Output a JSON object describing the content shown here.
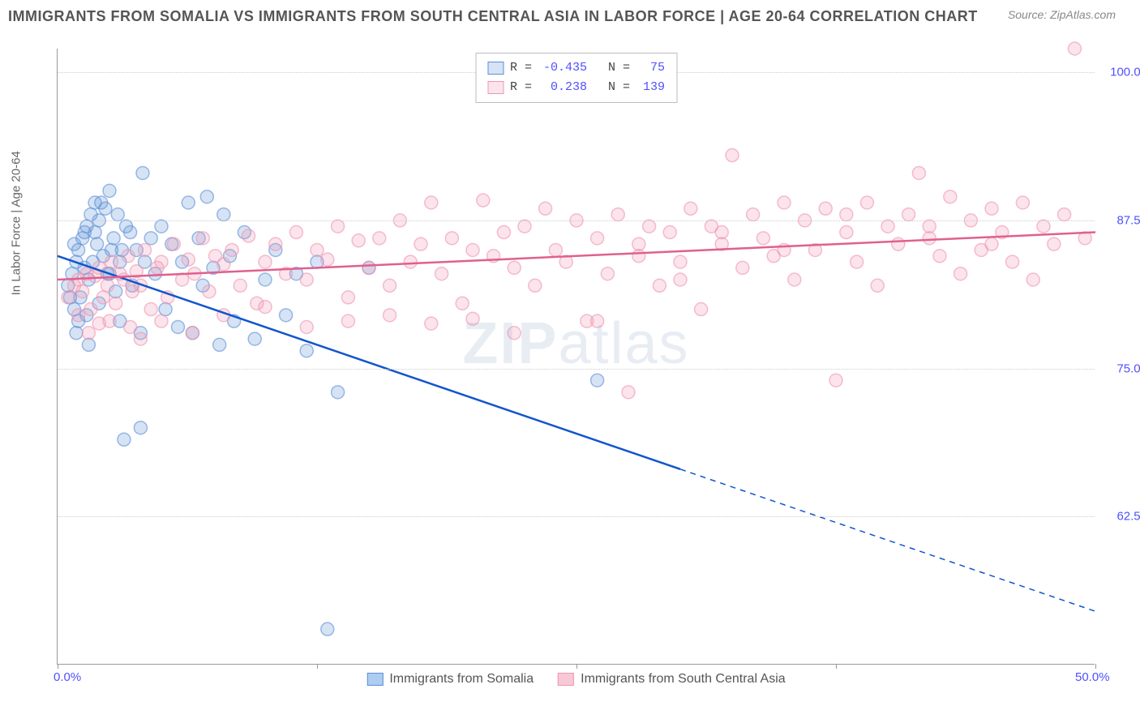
{
  "title": "IMMIGRANTS FROM SOMALIA VS IMMIGRANTS FROM SOUTH CENTRAL ASIA IN LABOR FORCE | AGE 20-64 CORRELATION CHART",
  "source": "Source: ZipAtlas.com",
  "ylabel": "In Labor Force | Age 20-64",
  "watermark_bold": "ZIP",
  "watermark_thin": "atlas",
  "chart": {
    "type": "scatter",
    "background_color": "#ffffff",
    "grid_color": "#cccccc",
    "axis_color": "#999999",
    "xlim": [
      0,
      50
    ],
    "ylim": [
      50,
      102
    ],
    "ytick_values": [
      62.5,
      75.0,
      87.5,
      100.0
    ],
    "ytick_labels": [
      "62.5%",
      "75.0%",
      "87.5%",
      "100.0%"
    ],
    "xtick_values": [
      0,
      12.5,
      25,
      37.5,
      50
    ],
    "xtick_labels": {
      "0": "0.0%",
      "50": "50.0%"
    },
    "marker_radius": 8,
    "marker_fill_opacity": 0.25,
    "marker_stroke_opacity": 0.6,
    "marker_stroke_width": 1.5,
    "line_width": 2.5
  },
  "series": [
    {
      "name": "Immigrants from Somalia",
      "color": "#5b8fd6",
      "line_color": "#1255cc",
      "R": "-0.435",
      "N": "75",
      "trend": {
        "x1": 0,
        "y1": 84.5,
        "x2": 30,
        "y2": 66.5,
        "x2_ext": 50,
        "y2_ext": 54.5
      },
      "points": [
        [
          0.5,
          82
        ],
        [
          0.7,
          83
        ],
        [
          0.8,
          80
        ],
        [
          0.9,
          84
        ],
        [
          1.0,
          85
        ],
        [
          1.1,
          81
        ],
        [
          1.2,
          86
        ],
        [
          1.3,
          83.5
        ],
        [
          1.4,
          87
        ],
        [
          1.5,
          82.5
        ],
        [
          1.6,
          88
        ],
        [
          1.7,
          84
        ],
        [
          1.8,
          86.5
        ],
        [
          1.9,
          85.5
        ],
        [
          2.0,
          87.5
        ],
        [
          2.1,
          89
        ],
        [
          2.2,
          84.5
        ],
        [
          2.3,
          88.5
        ],
        [
          2.4,
          83
        ],
        [
          2.5,
          90
        ],
        [
          2.6,
          85
        ],
        [
          2.7,
          86
        ],
        [
          2.8,
          81.5
        ],
        [
          2.9,
          88
        ],
        [
          3.0,
          84
        ],
        [
          3.2,
          69
        ],
        [
          3.3,
          87
        ],
        [
          3.5,
          86.5
        ],
        [
          3.6,
          82
        ],
        [
          3.8,
          85
        ],
        [
          4.0,
          78
        ],
        [
          4.1,
          91.5
        ],
        [
          4.2,
          84
        ],
        [
          4.5,
          86
        ],
        [
          4.7,
          83
        ],
        [
          5.0,
          87
        ],
        [
          5.2,
          80
        ],
        [
          5.5,
          85.5
        ],
        [
          5.8,
          78.5
        ],
        [
          6.0,
          84
        ],
        [
          6.3,
          89
        ],
        [
          6.5,
          78
        ],
        [
          6.8,
          86
        ],
        [
          7.0,
          82
        ],
        [
          7.2,
          89.5
        ],
        [
          7.5,
          83.5
        ],
        [
          7.8,
          77
        ],
        [
          8.0,
          88
        ],
        [
          8.3,
          84.5
        ],
        [
          8.5,
          79
        ],
        [
          9.0,
          86.5
        ],
        [
          9.5,
          77.5
        ],
        [
          10.0,
          82.5
        ],
        [
          10.5,
          85
        ],
        [
          11.0,
          79.5
        ],
        [
          11.5,
          83
        ],
        [
          12.0,
          76.5
        ],
        [
          12.5,
          84
        ],
        [
          13.0,
          53
        ],
        [
          15.0,
          83.5
        ],
        [
          1.0,
          79
        ],
        [
          1.5,
          77
        ],
        [
          2.0,
          80.5
        ],
        [
          0.8,
          85.5
        ],
        [
          1.3,
          86.5
        ],
        [
          3.0,
          79
        ],
        [
          4.0,
          70
        ],
        [
          1.8,
          89
        ],
        [
          2.5,
          83
        ],
        [
          3.1,
          85
        ],
        [
          0.6,
          81
        ],
        [
          0.9,
          78
        ],
        [
          1.4,
          79.5
        ],
        [
          26,
          74
        ],
        [
          13.5,
          73
        ]
      ]
    },
    {
      "name": "Immigrants from South Central Asia",
      "color": "#f095b0",
      "line_color": "#e06090",
      "R": "0.238",
      "N": "139",
      "trend": {
        "x1": 0,
        "y1": 82.5,
        "x2": 50,
        "y2": 86.5
      },
      "points": [
        [
          0.5,
          81
        ],
        [
          0.8,
          82
        ],
        [
          1.0,
          82.5
        ],
        [
          1.2,
          81.5
        ],
        [
          1.4,
          83
        ],
        [
          1.6,
          80
        ],
        [
          1.8,
          82.8
        ],
        [
          2.0,
          83.5
        ],
        [
          2.2,
          81
        ],
        [
          2.4,
          82
        ],
        [
          2.6,
          84
        ],
        [
          2.8,
          80.5
        ],
        [
          3.0,
          83
        ],
        [
          3.2,
          82.5
        ],
        [
          3.4,
          84.5
        ],
        [
          3.6,
          81.5
        ],
        [
          3.8,
          83.2
        ],
        [
          4.0,
          82
        ],
        [
          4.2,
          85
        ],
        [
          4.5,
          80
        ],
        [
          4.8,
          83.5
        ],
        [
          5.0,
          84
        ],
        [
          5.3,
          81
        ],
        [
          5.6,
          85.5
        ],
        [
          6.0,
          82.5
        ],
        [
          6.3,
          84.2
        ],
        [
          6.6,
          83
        ],
        [
          7.0,
          86
        ],
        [
          7.3,
          81.5
        ],
        [
          7.6,
          84.5
        ],
        [
          8.0,
          83.8
        ],
        [
          8.4,
          85
        ],
        [
          8.8,
          82
        ],
        [
          9.2,
          86.2
        ],
        [
          9.6,
          80.5
        ],
        [
          10.0,
          84
        ],
        [
          10.5,
          85.5
        ],
        [
          11.0,
          83
        ],
        [
          11.5,
          86.5
        ],
        [
          12.0,
          82.5
        ],
        [
          12.5,
          85
        ],
        [
          13.0,
          84.2
        ],
        [
          13.5,
          87
        ],
        [
          14.0,
          81
        ],
        [
          14.5,
          85.8
        ],
        [
          15.0,
          83.5
        ],
        [
          15.5,
          86
        ],
        [
          16.0,
          82
        ],
        [
          16.5,
          87.5
        ],
        [
          17.0,
          84
        ],
        [
          17.5,
          85.5
        ],
        [
          18.0,
          89
        ],
        [
          18.5,
          83
        ],
        [
          19.0,
          86
        ],
        [
          19.5,
          80.5
        ],
        [
          20.0,
          85
        ],
        [
          20.5,
          89.2
        ],
        [
          21.0,
          84.5
        ],
        [
          21.5,
          86.5
        ],
        [
          22.0,
          83.5
        ],
        [
          22.5,
          87
        ],
        [
          23.0,
          82
        ],
        [
          23.5,
          88.5
        ],
        [
          24.0,
          85
        ],
        [
          24.5,
          84
        ],
        [
          25.0,
          87.5
        ],
        [
          25.5,
          79
        ],
        [
          26.0,
          86
        ],
        [
          26.5,
          83
        ],
        [
          27.0,
          88
        ],
        [
          27.5,
          73
        ],
        [
          28.0,
          85.5
        ],
        [
          28.5,
          87
        ],
        [
          29.0,
          82
        ],
        [
          29.5,
          86.5
        ],
        [
          30.0,
          84
        ],
        [
          30.5,
          88.5
        ],
        [
          31.0,
          80
        ],
        [
          31.5,
          87
        ],
        [
          32.0,
          85.5
        ],
        [
          32.5,
          93
        ],
        [
          33.0,
          83.5
        ],
        [
          33.5,
          88
        ],
        [
          34.0,
          86
        ],
        [
          34.5,
          84.5
        ],
        [
          35.0,
          89
        ],
        [
          35.5,
          82.5
        ],
        [
          36.0,
          87.5
        ],
        [
          36.5,
          85
        ],
        [
          37.0,
          88.5
        ],
        [
          37.5,
          74
        ],
        [
          38.0,
          86.5
        ],
        [
          38.5,
          84
        ],
        [
          39.0,
          89
        ],
        [
          39.5,
          82
        ],
        [
          40.0,
          87
        ],
        [
          40.5,
          85.5
        ],
        [
          41.0,
          88
        ],
        [
          41.5,
          91.5
        ],
        [
          42.0,
          86
        ],
        [
          42.5,
          84.5
        ],
        [
          43.0,
          89.5
        ],
        [
          43.5,
          83
        ],
        [
          44.0,
          87.5
        ],
        [
          44.5,
          85
        ],
        [
          45.0,
          88.5
        ],
        [
          45.5,
          86.5
        ],
        [
          46.0,
          84
        ],
        [
          46.5,
          89
        ],
        [
          47.0,
          82.5
        ],
        [
          47.5,
          87
        ],
        [
          48.0,
          85.5
        ],
        [
          48.5,
          88
        ],
        [
          49.0,
          102
        ],
        [
          49.5,
          86
        ],
        [
          2.5,
          79
        ],
        [
          3.5,
          78.5
        ],
        [
          1.0,
          79.5
        ],
        [
          1.5,
          78
        ],
        [
          2.0,
          78.8
        ],
        [
          4.0,
          77.5
        ],
        [
          5.0,
          79
        ],
        [
          6.5,
          78
        ],
        [
          8.0,
          79.5
        ],
        [
          10,
          80.2
        ],
        [
          12,
          78.5
        ],
        [
          14,
          79
        ],
        [
          16,
          79.5
        ],
        [
          18,
          78.8
        ],
        [
          20,
          79.2
        ],
        [
          22,
          78
        ],
        [
          26,
          79
        ],
        [
          45,
          85.5
        ],
        [
          42,
          87
        ],
        [
          38,
          88
        ],
        [
          35,
          85
        ],
        [
          32,
          86.5
        ],
        [
          28,
          84.5
        ],
        [
          30,
          82.5
        ]
      ]
    }
  ],
  "legend_bottom": [
    {
      "label": "Immigrants from Somalia",
      "color_fill": "#aeccf0",
      "color_stroke": "#5b8fd6"
    },
    {
      "label": "Immigrants from South Central Asia",
      "color_fill": "#f7c9d7",
      "color_stroke": "#f095b0"
    }
  ]
}
